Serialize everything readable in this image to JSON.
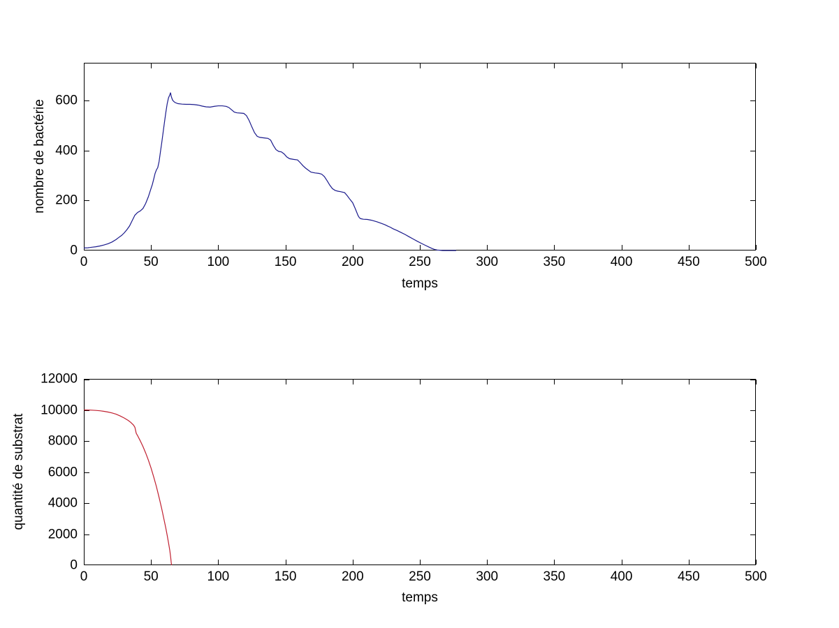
{
  "figure": {
    "background": "#FFFFFF",
    "frame_color": "#000000",
    "tick_label_color": "#000000"
  },
  "chart_data": [
    {
      "name": "bacteria-plot",
      "type": "line",
      "title": "",
      "xlabel": "temps",
      "ylabel": "nombre de bactérie",
      "xlim": [
        0,
        500
      ],
      "ylim": [
        0,
        750
      ],
      "xticks": [
        0,
        50,
        100,
        150,
        200,
        250,
        300,
        350,
        400,
        450,
        500
      ],
      "yticks": [
        0,
        200,
        400,
        600
      ],
      "grid": false,
      "legend": null,
      "line_color": "#1A1A8C",
      "line_width": 1.2,
      "points": [
        [
          0,
          10
        ],
        [
          3,
          11
        ],
        [
          6,
          13
        ],
        [
          9,
          15
        ],
        [
          12,
          18
        ],
        [
          15,
          22
        ],
        [
          18,
          27
        ],
        [
          21,
          34
        ],
        [
          24,
          44
        ],
        [
          26,
          52
        ],
        [
          28,
          60
        ],
        [
          30,
          70
        ],
        [
          32,
          83
        ],
        [
          34,
          98
        ],
        [
          36,
          120
        ],
        [
          38,
          141
        ],
        [
          40,
          152
        ],
        [
          42,
          158
        ],
        [
          44,
          168
        ],
        [
          46,
          188
        ],
        [
          48,
          215
        ],
        [
          50,
          248
        ],
        [
          51,
          264
        ],
        [
          52,
          285
        ],
        [
          53,
          308
        ],
        [
          54,
          322
        ],
        [
          55,
          331
        ],
        [
          56,
          355
        ],
        [
          57,
          395
        ],
        [
          58,
          432
        ],
        [
          59,
          472
        ],
        [
          60,
          512
        ],
        [
          61,
          552
        ],
        [
          62,
          586
        ],
        [
          63,
          610
        ],
        [
          64,
          622
        ],
        [
          64.5,
          631
        ],
        [
          65,
          616
        ],
        [
          66,
          601
        ],
        [
          67,
          595
        ],
        [
          68,
          591
        ],
        [
          70,
          587
        ],
        [
          73,
          585
        ],
        [
          76,
          584
        ],
        [
          79,
          584
        ],
        [
          82,
          583
        ],
        [
          85,
          581
        ],
        [
          88,
          577
        ],
        [
          91,
          574
        ],
        [
          94,
          573
        ],
        [
          97,
          576
        ],
        [
          100,
          578
        ],
        [
          103,
          578
        ],
        [
          106,
          576
        ],
        [
          108,
          571
        ],
        [
          110,
          562
        ],
        [
          112,
          553
        ],
        [
          114,
          550
        ],
        [
          117,
          549
        ],
        [
          119,
          548
        ],
        [
          121,
          539
        ],
        [
          123,
          519
        ],
        [
          125,
          494
        ],
        [
          127,
          471
        ],
        [
          129,
          456
        ],
        [
          131,
          452
        ],
        [
          134,
          450
        ],
        [
          137,
          448
        ],
        [
          139,
          441
        ],
        [
          141,
          420
        ],
        [
          143,
          403
        ],
        [
          145,
          396
        ],
        [
          147,
          394
        ],
        [
          149,
          386
        ],
        [
          151,
          374
        ],
        [
          153,
          367
        ],
        [
          156,
          364
        ],
        [
          159,
          362
        ],
        [
          161,
          351
        ],
        [
          163,
          339
        ],
        [
          165,
          329
        ],
        [
          167,
          321
        ],
        [
          169,
          313
        ],
        [
          172,
          310
        ],
        [
          175,
          308
        ],
        [
          177,
          305
        ],
        [
          179,
          295
        ],
        [
          181,
          279
        ],
        [
          183,
          261
        ],
        [
          185,
          247
        ],
        [
          187,
          240
        ],
        [
          189,
          237
        ],
        [
          191,
          235
        ],
        [
          194,
          231
        ],
        [
          196,
          219
        ],
        [
          198,
          204
        ],
        [
          200,
          191
        ],
        [
          202,
          167
        ],
        [
          204,
          140
        ],
        [
          205,
          131
        ],
        [
          206,
          127
        ],
        [
          208,
          125
        ],
        [
          211,
          124
        ],
        [
          214,
          121
        ],
        [
          216,
          118
        ],
        [
          218,
          115
        ],
        [
          220,
          111
        ],
        [
          222,
          107
        ],
        [
          224,
          103
        ],
        [
          226,
          98
        ],
        [
          228,
          93
        ],
        [
          230,
          87
        ],
        [
          233,
          80
        ],
        [
          236,
          72
        ],
        [
          239,
          64
        ],
        [
          242,
          55
        ],
        [
          245,
          46
        ],
        [
          248,
          37
        ],
        [
          251,
          29
        ],
        [
          254,
          21
        ],
        [
          257,
          13
        ],
        [
          259,
          8
        ],
        [
          261,
          4
        ],
        [
          263,
          2
        ],
        [
          265,
          1
        ],
        [
          267,
          0
        ],
        [
          271,
          0
        ],
        [
          275,
          0
        ],
        [
          277,
          0
        ]
      ]
    },
    {
      "name": "substrate-plot",
      "type": "line",
      "title": "",
      "xlabel": "temps",
      "ylabel": "quantité de substrat",
      "xlim": [
        0,
        500
      ],
      "ylim": [
        0,
        12000
      ],
      "xticks": [
        0,
        50,
        100,
        150,
        200,
        250,
        300,
        350,
        400,
        450,
        500
      ],
      "yticks": [
        0,
        2000,
        4000,
        6000,
        8000,
        10000,
        12000
      ],
      "grid": false,
      "legend": null,
      "line_color": "#C02030",
      "line_width": 1.2,
      "points": [
        [
          0,
          10000
        ],
        [
          3,
          9995
        ],
        [
          6,
          9985
        ],
        [
          9,
          9970
        ],
        [
          12,
          9945
        ],
        [
          15,
          9910
        ],
        [
          18,
          9865
        ],
        [
          21,
          9805
        ],
        [
          24,
          9725
        ],
        [
          27,
          9615
        ],
        [
          30,
          9485
        ],
        [
          33,
          9325
        ],
        [
          35,
          9195
        ],
        [
          37,
          9020
        ],
        [
          38,
          8880
        ],
        [
          39,
          8500
        ],
        [
          40,
          8340
        ],
        [
          42,
          8010
        ],
        [
          44,
          7640
        ],
        [
          46,
          7230
        ],
        [
          48,
          6770
        ],
        [
          50,
          6260
        ],
        [
          52,
          5690
        ],
        [
          54,
          5060
        ],
        [
          56,
          4370
        ],
        [
          58,
          3620
        ],
        [
          60,
          2810
        ],
        [
          61,
          2380
        ],
        [
          62,
          1930
        ],
        [
          63,
          1450
        ],
        [
          64,
          940
        ],
        [
          64.6,
          520
        ],
        [
          65,
          170
        ],
        [
          65.3,
          0
        ]
      ]
    }
  ]
}
